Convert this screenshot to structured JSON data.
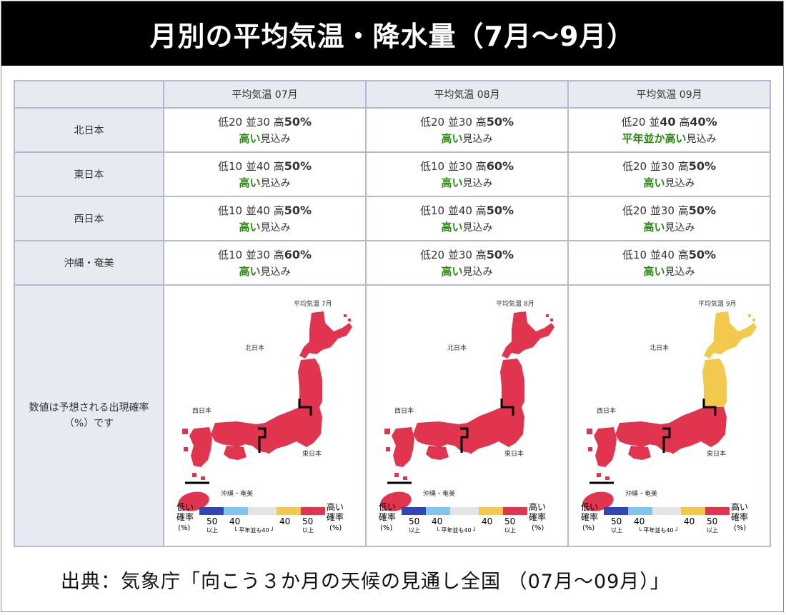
{
  "title": "月別の平均気温・降水量（7月～9月）",
  "columns": [
    "平均気温 07月",
    "平均気温 08月",
    "平均気温 09月"
  ],
  "rows": [
    {
      "region": "北日本",
      "cells": [
        {
          "low": "低20",
          "mid": "並30",
          "high_label": "高",
          "high_value": "50%",
          "outlook": "高い",
          "suffix": "見込み"
        },
        {
          "low": "低20",
          "mid": "並30",
          "high_label": "高",
          "high_value": "50%",
          "outlook": "高い",
          "suffix": "見込み"
        },
        {
          "low": "低20",
          "mid_label": "並",
          "mid": "40",
          "high_label": "高",
          "high_value": "40%",
          "outlook": "平年並か高い",
          "suffix": "見込み"
        }
      ]
    },
    {
      "region": "東日本",
      "cells": [
        {
          "low": "低10",
          "mid": "並40",
          "high_label": "高",
          "high_value": "50%",
          "outlook": "高い",
          "suffix": "見込み"
        },
        {
          "low": "低10",
          "mid": "並30",
          "high_label": "高",
          "high_value": "60%",
          "outlook": "高い",
          "suffix": "見込み"
        },
        {
          "low": "低20",
          "mid": "並30",
          "high_label": "高",
          "high_value": "50%",
          "outlook": "高い",
          "suffix": "見込み"
        }
      ]
    },
    {
      "region": "西日本",
      "cells": [
        {
          "low": "低10",
          "mid": "並40",
          "high_label": "高",
          "high_value": "50%",
          "outlook": "高い",
          "suffix": "見込み"
        },
        {
          "low": "低10",
          "mid": "並40",
          "high_label": "高",
          "high_value": "50%",
          "outlook": "高い",
          "suffix": "見込み"
        },
        {
          "low": "低20",
          "mid": "並30",
          "high_label": "高",
          "high_value": "50%",
          "outlook": "高い",
          "suffix": "見込み"
        }
      ]
    },
    {
      "region": "沖縄・奄美",
      "cells": [
        {
          "low": "低10",
          "mid": "並30",
          "high_label": "高",
          "high_value": "60%",
          "outlook": "高い",
          "suffix": "見込み"
        },
        {
          "low": "低20",
          "mid": "並30",
          "high_label": "高",
          "high_value": "50%",
          "outlook": "高い",
          "suffix": "見込み"
        },
        {
          "low": "低10",
          "mid": "並40",
          "high_label": "高",
          "high_value": "50%",
          "outlook": "高い",
          "suffix": "見込み"
        }
      ]
    }
  ],
  "map_note_line1": "数値は予想される出現確率",
  "map_note_line2": "（%）です",
  "maps": [
    {
      "title": "平均気温 7月",
      "north_color": "#e0344f"
    },
    {
      "title": "平均気温 8月",
      "north_color": "#e0344f"
    },
    {
      "title": "平均気温 9月",
      "north_color": "#f2c94c"
    }
  ],
  "map_labels": {
    "north": "北日本",
    "west": "西日本",
    "east": "東日本",
    "okinawa": "沖縄・奄美"
  },
  "legend": {
    "low_label": "低い",
    "high_label": "高い",
    "rate_label": "確率",
    "unit": "(%)",
    "num_50": "50",
    "num_40": "40",
    "above": "以上",
    "normal_note": "└ 平年並も40 ┘"
  },
  "colors": {
    "high": "#e0344f",
    "normal_or_high": "#f2c94c",
    "outlook_green": "#2a8a12",
    "low_dark": "#2f46b5",
    "low_light": "#7fc6ee",
    "normal_gray": "#e4e4e4"
  },
  "source": "出典：気象庁「向こう３か月の天候の見通し全国 （07月～09月）」"
}
